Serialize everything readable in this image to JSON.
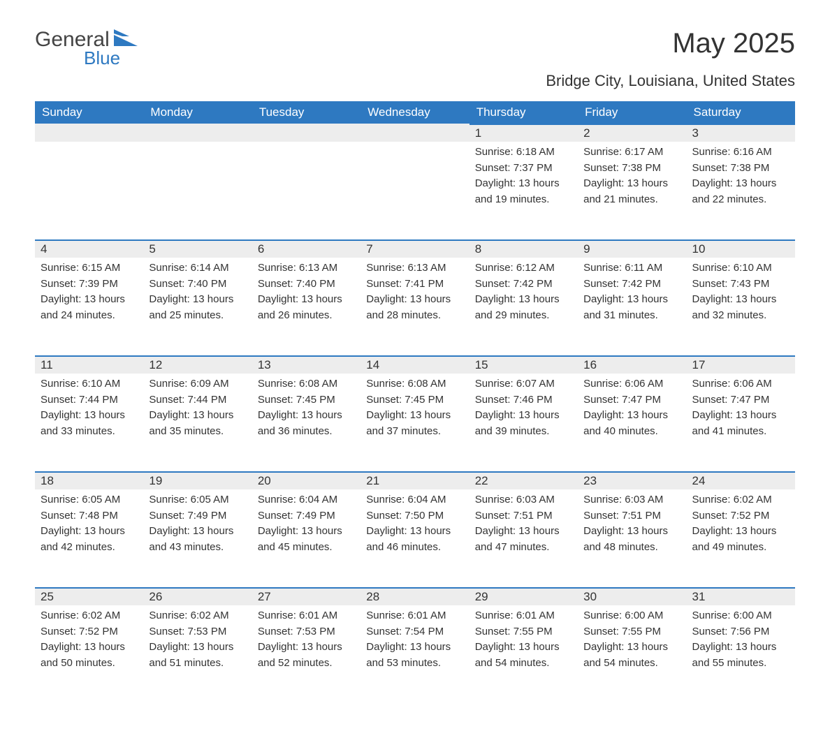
{
  "logo": {
    "general": "General",
    "blue": "Blue"
  },
  "title": "May 2025",
  "subtitle": "Bridge City, Louisiana, United States",
  "colors": {
    "header_bg": "#2e79c1",
    "header_text": "#ffffff",
    "daynum_bg": "#ededed",
    "daynum_border": "#2e79c1",
    "body_text": "#333333",
    "background": "#ffffff"
  },
  "day_headers": [
    "Sunday",
    "Monday",
    "Tuesday",
    "Wednesday",
    "Thursday",
    "Friday",
    "Saturday"
  ],
  "weeks": [
    [
      {
        "day": "",
        "sunrise": "",
        "sunset": "",
        "daylight": ""
      },
      {
        "day": "",
        "sunrise": "",
        "sunset": "",
        "daylight": ""
      },
      {
        "day": "",
        "sunrise": "",
        "sunset": "",
        "daylight": ""
      },
      {
        "day": "",
        "sunrise": "",
        "sunset": "",
        "daylight": ""
      },
      {
        "day": "1",
        "sunrise": "Sunrise: 6:18 AM",
        "sunset": "Sunset: 7:37 PM",
        "daylight": "Daylight: 13 hours and 19 minutes."
      },
      {
        "day": "2",
        "sunrise": "Sunrise: 6:17 AM",
        "sunset": "Sunset: 7:38 PM",
        "daylight": "Daylight: 13 hours and 21 minutes."
      },
      {
        "day": "3",
        "sunrise": "Sunrise: 6:16 AM",
        "sunset": "Sunset: 7:38 PM",
        "daylight": "Daylight: 13 hours and 22 minutes."
      }
    ],
    [
      {
        "day": "4",
        "sunrise": "Sunrise: 6:15 AM",
        "sunset": "Sunset: 7:39 PM",
        "daylight": "Daylight: 13 hours and 24 minutes."
      },
      {
        "day": "5",
        "sunrise": "Sunrise: 6:14 AM",
        "sunset": "Sunset: 7:40 PM",
        "daylight": "Daylight: 13 hours and 25 minutes."
      },
      {
        "day": "6",
        "sunrise": "Sunrise: 6:13 AM",
        "sunset": "Sunset: 7:40 PM",
        "daylight": "Daylight: 13 hours and 26 minutes."
      },
      {
        "day": "7",
        "sunrise": "Sunrise: 6:13 AM",
        "sunset": "Sunset: 7:41 PM",
        "daylight": "Daylight: 13 hours and 28 minutes."
      },
      {
        "day": "8",
        "sunrise": "Sunrise: 6:12 AM",
        "sunset": "Sunset: 7:42 PM",
        "daylight": "Daylight: 13 hours and 29 minutes."
      },
      {
        "day": "9",
        "sunrise": "Sunrise: 6:11 AM",
        "sunset": "Sunset: 7:42 PM",
        "daylight": "Daylight: 13 hours and 31 minutes."
      },
      {
        "day": "10",
        "sunrise": "Sunrise: 6:10 AM",
        "sunset": "Sunset: 7:43 PM",
        "daylight": "Daylight: 13 hours and 32 minutes."
      }
    ],
    [
      {
        "day": "11",
        "sunrise": "Sunrise: 6:10 AM",
        "sunset": "Sunset: 7:44 PM",
        "daylight": "Daylight: 13 hours and 33 minutes."
      },
      {
        "day": "12",
        "sunrise": "Sunrise: 6:09 AM",
        "sunset": "Sunset: 7:44 PM",
        "daylight": "Daylight: 13 hours and 35 minutes."
      },
      {
        "day": "13",
        "sunrise": "Sunrise: 6:08 AM",
        "sunset": "Sunset: 7:45 PM",
        "daylight": "Daylight: 13 hours and 36 minutes."
      },
      {
        "day": "14",
        "sunrise": "Sunrise: 6:08 AM",
        "sunset": "Sunset: 7:45 PM",
        "daylight": "Daylight: 13 hours and 37 minutes."
      },
      {
        "day": "15",
        "sunrise": "Sunrise: 6:07 AM",
        "sunset": "Sunset: 7:46 PM",
        "daylight": "Daylight: 13 hours and 39 minutes."
      },
      {
        "day": "16",
        "sunrise": "Sunrise: 6:06 AM",
        "sunset": "Sunset: 7:47 PM",
        "daylight": "Daylight: 13 hours and 40 minutes."
      },
      {
        "day": "17",
        "sunrise": "Sunrise: 6:06 AM",
        "sunset": "Sunset: 7:47 PM",
        "daylight": "Daylight: 13 hours and 41 minutes."
      }
    ],
    [
      {
        "day": "18",
        "sunrise": "Sunrise: 6:05 AM",
        "sunset": "Sunset: 7:48 PM",
        "daylight": "Daylight: 13 hours and 42 minutes."
      },
      {
        "day": "19",
        "sunrise": "Sunrise: 6:05 AM",
        "sunset": "Sunset: 7:49 PM",
        "daylight": "Daylight: 13 hours and 43 minutes."
      },
      {
        "day": "20",
        "sunrise": "Sunrise: 6:04 AM",
        "sunset": "Sunset: 7:49 PM",
        "daylight": "Daylight: 13 hours and 45 minutes."
      },
      {
        "day": "21",
        "sunrise": "Sunrise: 6:04 AM",
        "sunset": "Sunset: 7:50 PM",
        "daylight": "Daylight: 13 hours and 46 minutes."
      },
      {
        "day": "22",
        "sunrise": "Sunrise: 6:03 AM",
        "sunset": "Sunset: 7:51 PM",
        "daylight": "Daylight: 13 hours and 47 minutes."
      },
      {
        "day": "23",
        "sunrise": "Sunrise: 6:03 AM",
        "sunset": "Sunset: 7:51 PM",
        "daylight": "Daylight: 13 hours and 48 minutes."
      },
      {
        "day": "24",
        "sunrise": "Sunrise: 6:02 AM",
        "sunset": "Sunset: 7:52 PM",
        "daylight": "Daylight: 13 hours and 49 minutes."
      }
    ],
    [
      {
        "day": "25",
        "sunrise": "Sunrise: 6:02 AM",
        "sunset": "Sunset: 7:52 PM",
        "daylight": "Daylight: 13 hours and 50 minutes."
      },
      {
        "day": "26",
        "sunrise": "Sunrise: 6:02 AM",
        "sunset": "Sunset: 7:53 PM",
        "daylight": "Daylight: 13 hours and 51 minutes."
      },
      {
        "day": "27",
        "sunrise": "Sunrise: 6:01 AM",
        "sunset": "Sunset: 7:53 PM",
        "daylight": "Daylight: 13 hours and 52 minutes."
      },
      {
        "day": "28",
        "sunrise": "Sunrise: 6:01 AM",
        "sunset": "Sunset: 7:54 PM",
        "daylight": "Daylight: 13 hours and 53 minutes."
      },
      {
        "day": "29",
        "sunrise": "Sunrise: 6:01 AM",
        "sunset": "Sunset: 7:55 PM",
        "daylight": "Daylight: 13 hours and 54 minutes."
      },
      {
        "day": "30",
        "sunrise": "Sunrise: 6:00 AM",
        "sunset": "Sunset: 7:55 PM",
        "daylight": "Daylight: 13 hours and 54 minutes."
      },
      {
        "day": "31",
        "sunrise": "Sunrise: 6:00 AM",
        "sunset": "Sunset: 7:56 PM",
        "daylight": "Daylight: 13 hours and 55 minutes."
      }
    ]
  ]
}
